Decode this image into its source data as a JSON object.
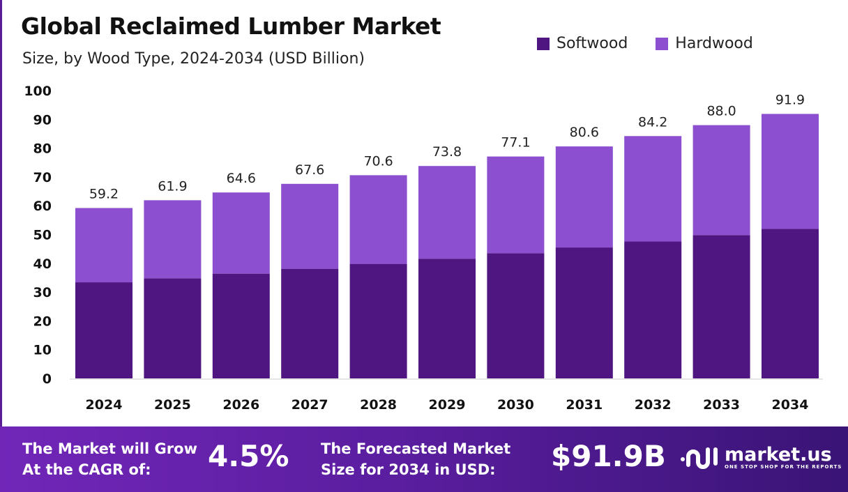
{
  "chart_data": {
    "type": "bar",
    "stacked": true,
    "title": "Global Reclaimed Lumber Market",
    "subtitle": "Size, by Wood Type, 2024-2034 (USD Billion)",
    "categories": [
      "2024",
      "2025",
      "2026",
      "2027",
      "2028",
      "2029",
      "2030",
      "2031",
      "2032",
      "2033",
      "2034"
    ],
    "series": [
      {
        "name": "Softwood",
        "color": "#4f1682",
        "values": [
          33.4,
          34.8,
          36.4,
          38.1,
          39.8,
          41.6,
          43.5,
          45.5,
          47.6,
          49.8,
          52.0
        ]
      },
      {
        "name": "Hardwood",
        "color": "#8b4fcf",
        "values": [
          25.8,
          27.1,
          28.2,
          29.5,
          30.8,
          32.2,
          33.6,
          35.1,
          36.6,
          38.2,
          39.9
        ]
      }
    ],
    "totals": [
      "59.2",
      "61.9",
      "64.6",
      "67.6",
      "70.6",
      "73.8",
      "77.1",
      "80.6",
      "84.2",
      "88.0",
      "91.9"
    ],
    "ylim": [
      0,
      100
    ],
    "yticks": [
      "0",
      "10",
      "20",
      "30",
      "40",
      "50",
      "60",
      "70",
      "80",
      "90",
      "100"
    ],
    "grid": false,
    "legend_position": "top-right"
  },
  "footer": {
    "cagr_label_1": "The Market will Grow",
    "cagr_label_2": "At the CAGR of:",
    "cagr_value": "4.5%",
    "forecast_label_1": "The Forecasted Market",
    "forecast_label_2": "Size for 2034 in USD:",
    "forecast_value": "$91.9B",
    "logo_name": "market.us",
    "logo_tagline": "ONE STOP SHOP FOR THE REPORTS"
  }
}
